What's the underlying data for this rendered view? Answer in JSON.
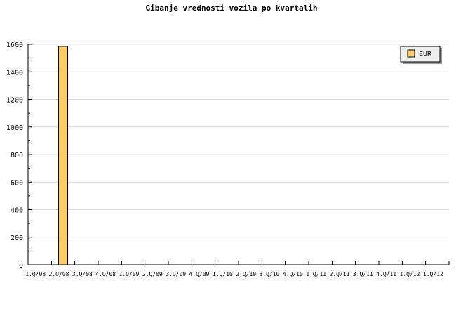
{
  "chart_data": {
    "type": "bar",
    "title": "Gibanje vrednosti vozila po kvartalih",
    "xlabel": "",
    "ylabel": "",
    "ylim": [
      0,
      1600
    ],
    "yticks": [
      0,
      200,
      400,
      600,
      800,
      1000,
      1200,
      1400,
      1600
    ],
    "grid": true,
    "legend_position": "top-right",
    "categories": [
      "1.Q/08",
      "2.Q/08",
      "3.Q/08",
      "4.Q/08",
      "1.Q/09",
      "2.Q/09",
      "3.Q/09",
      "4.Q/09",
      "1.Q/10",
      "2.Q/10",
      "3.Q/10",
      "4.Q/10",
      "1.Q/11",
      "2.Q/11",
      "3.Q/11",
      "4.Q/11",
      "1.Q/12",
      "1.Q/12"
    ],
    "series": [
      {
        "name": "EUR",
        "color": "#ffcc66",
        "values": [
          0,
          1585,
          0,
          0,
          0,
          0,
          0,
          0,
          0,
          0,
          0,
          0,
          0,
          0,
          0,
          0,
          0,
          0
        ]
      }
    ]
  }
}
